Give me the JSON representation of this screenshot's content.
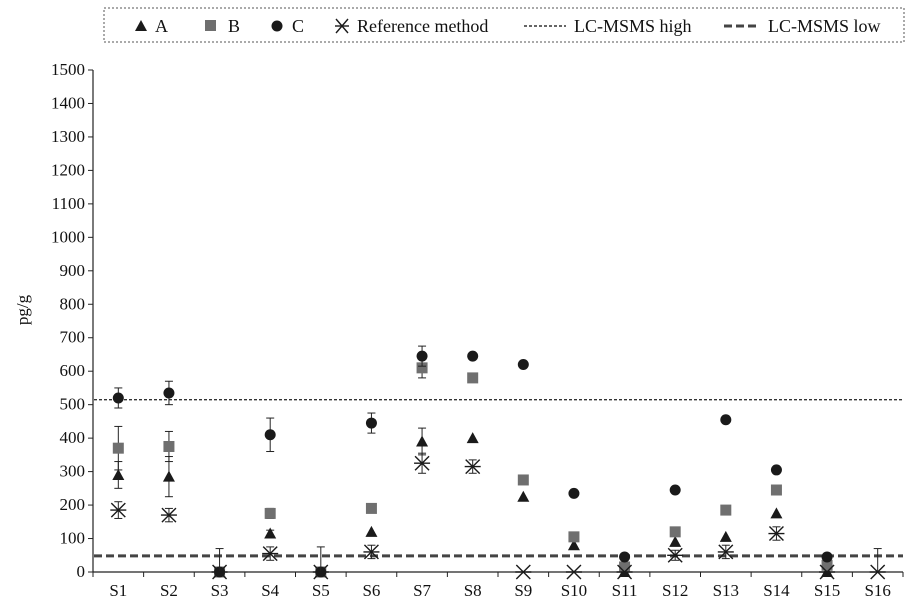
{
  "chart_data": {
    "type": "scatter",
    "ylabel": "pg/g",
    "xlabel": "",
    "ylim": [
      0,
      1500
    ],
    "yticks": [
      0,
      100,
      200,
      300,
      400,
      500,
      600,
      700,
      800,
      900,
      1000,
      1100,
      1200,
      1300,
      1400,
      1500
    ],
    "categories": [
      "S1",
      "S2",
      "S3",
      "S4",
      "S5",
      "S6",
      "S7",
      "S8",
      "S9",
      "S10",
      "S11",
      "S12",
      "S13",
      "S14",
      "S15",
      "S16"
    ],
    "legend_position": "top",
    "series": [
      {
        "name": "A",
        "marker": "triangle",
        "color": "#1a1a1a",
        "values": [
          290,
          285,
          0,
          115,
          0,
          120,
          390,
          400,
          225,
          80,
          0,
          90,
          105,
          175,
          0,
          null
        ],
        "error": [
          40,
          60,
          0,
          10,
          0,
          0,
          40,
          0,
          0,
          0,
          0,
          0,
          0,
          0,
          0,
          null
        ]
      },
      {
        "name": "B",
        "marker": "square",
        "color": "#6f6f6f",
        "values": [
          370,
          375,
          0,
          175,
          0,
          190,
          610,
          580,
          275,
          105,
          15,
          120,
          185,
          245,
          20,
          null
        ],
        "error": [
          65,
          45,
          0,
          15,
          0,
          0,
          30,
          0,
          0,
          0,
          0,
          0,
          0,
          0,
          0,
          null
        ]
      },
      {
        "name": "C",
        "marker": "circle",
        "color": "#1a1a1a",
        "values": [
          520,
          535,
          0,
          410,
          0,
          445,
          645,
          645,
          620,
          235,
          45,
          245,
          455,
          305,
          45,
          null
        ],
        "error": [
          30,
          35,
          0,
          50,
          0,
          30,
          30,
          0,
          0,
          0,
          0,
          0,
          0,
          0,
          0,
          null
        ]
      },
      {
        "name": "Reference method",
        "marker": "asterisk",
        "color": "#1a1a1a",
        "values": [
          185,
          170,
          0,
          55,
          0,
          60,
          325,
          315,
          0,
          0,
          0,
          50,
          60,
          115,
          0,
          0
        ],
        "error": [
          25,
          20,
          70,
          20,
          75,
          20,
          30,
          20,
          0,
          0,
          0,
          15,
          20,
          20,
          0,
          70
        ]
      }
    ],
    "reference_lines": [
      {
        "name": "LC-MSMS high",
        "value": 515,
        "style": "dotted",
        "color": "#333333"
      },
      {
        "name": "LC-MSMS low",
        "value": 48,
        "style": "dashed",
        "color": "#444444"
      }
    ]
  }
}
